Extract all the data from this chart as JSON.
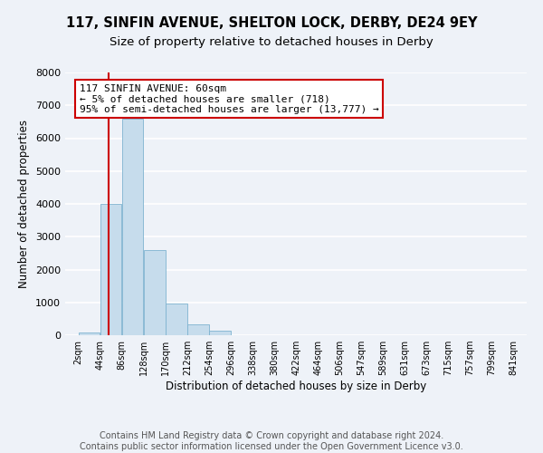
{
  "title": "117, SINFIN AVENUE, SHELTON LOCK, DERBY, DE24 9EY",
  "subtitle": "Size of property relative to detached houses in Derby",
  "xlabel": "Distribution of detached houses by size in Derby",
  "ylabel": "Number of detached properties",
  "footer_line1": "Contains HM Land Registry data © Crown copyright and database right 2024.",
  "footer_line2": "Contains public sector information licensed under the Open Government Licence v3.0.",
  "bin_edges": [
    2,
    44,
    86,
    128,
    170,
    212,
    254,
    296,
    338,
    380,
    422,
    464,
    506,
    547,
    589,
    631,
    673,
    715,
    757,
    799,
    841
  ],
  "bin_labels": [
    "2sqm",
    "44sqm",
    "86sqm",
    "128sqm",
    "170sqm",
    "212sqm",
    "254sqm",
    "296sqm",
    "338sqm",
    "380sqm",
    "422sqm",
    "464sqm",
    "506sqm",
    "547sqm",
    "589sqm",
    "631sqm",
    "673sqm",
    "715sqm",
    "757sqm",
    "799sqm",
    "841sqm"
  ],
  "counts": [
    75,
    4000,
    6600,
    2600,
    975,
    340,
    130,
    0,
    0,
    0,
    0,
    0,
    0,
    0,
    0,
    0,
    0,
    0,
    0,
    0
  ],
  "bar_color": "#c6dcec",
  "bar_edge_color": "#7fb3d0",
  "vline_x": 60,
  "vline_color": "#cc0000",
  "annotation_text_line1": "117 SINFIN AVENUE: 60sqm",
  "annotation_text_line2": "← 5% of detached houses are smaller (718)",
  "annotation_text_line3": "95% of semi-detached houses are larger (13,777) →",
  "ylim": [
    0,
    8000
  ],
  "yticks": [
    0,
    1000,
    2000,
    3000,
    4000,
    5000,
    6000,
    7000,
    8000
  ],
  "background_color": "#eef2f8",
  "grid_color": "#ffffff",
  "title_fontsize": 10.5,
  "subtitle_fontsize": 9.5,
  "axis_fontsize": 8.5,
  "tick_fontsize": 7,
  "footer_fontsize": 7
}
